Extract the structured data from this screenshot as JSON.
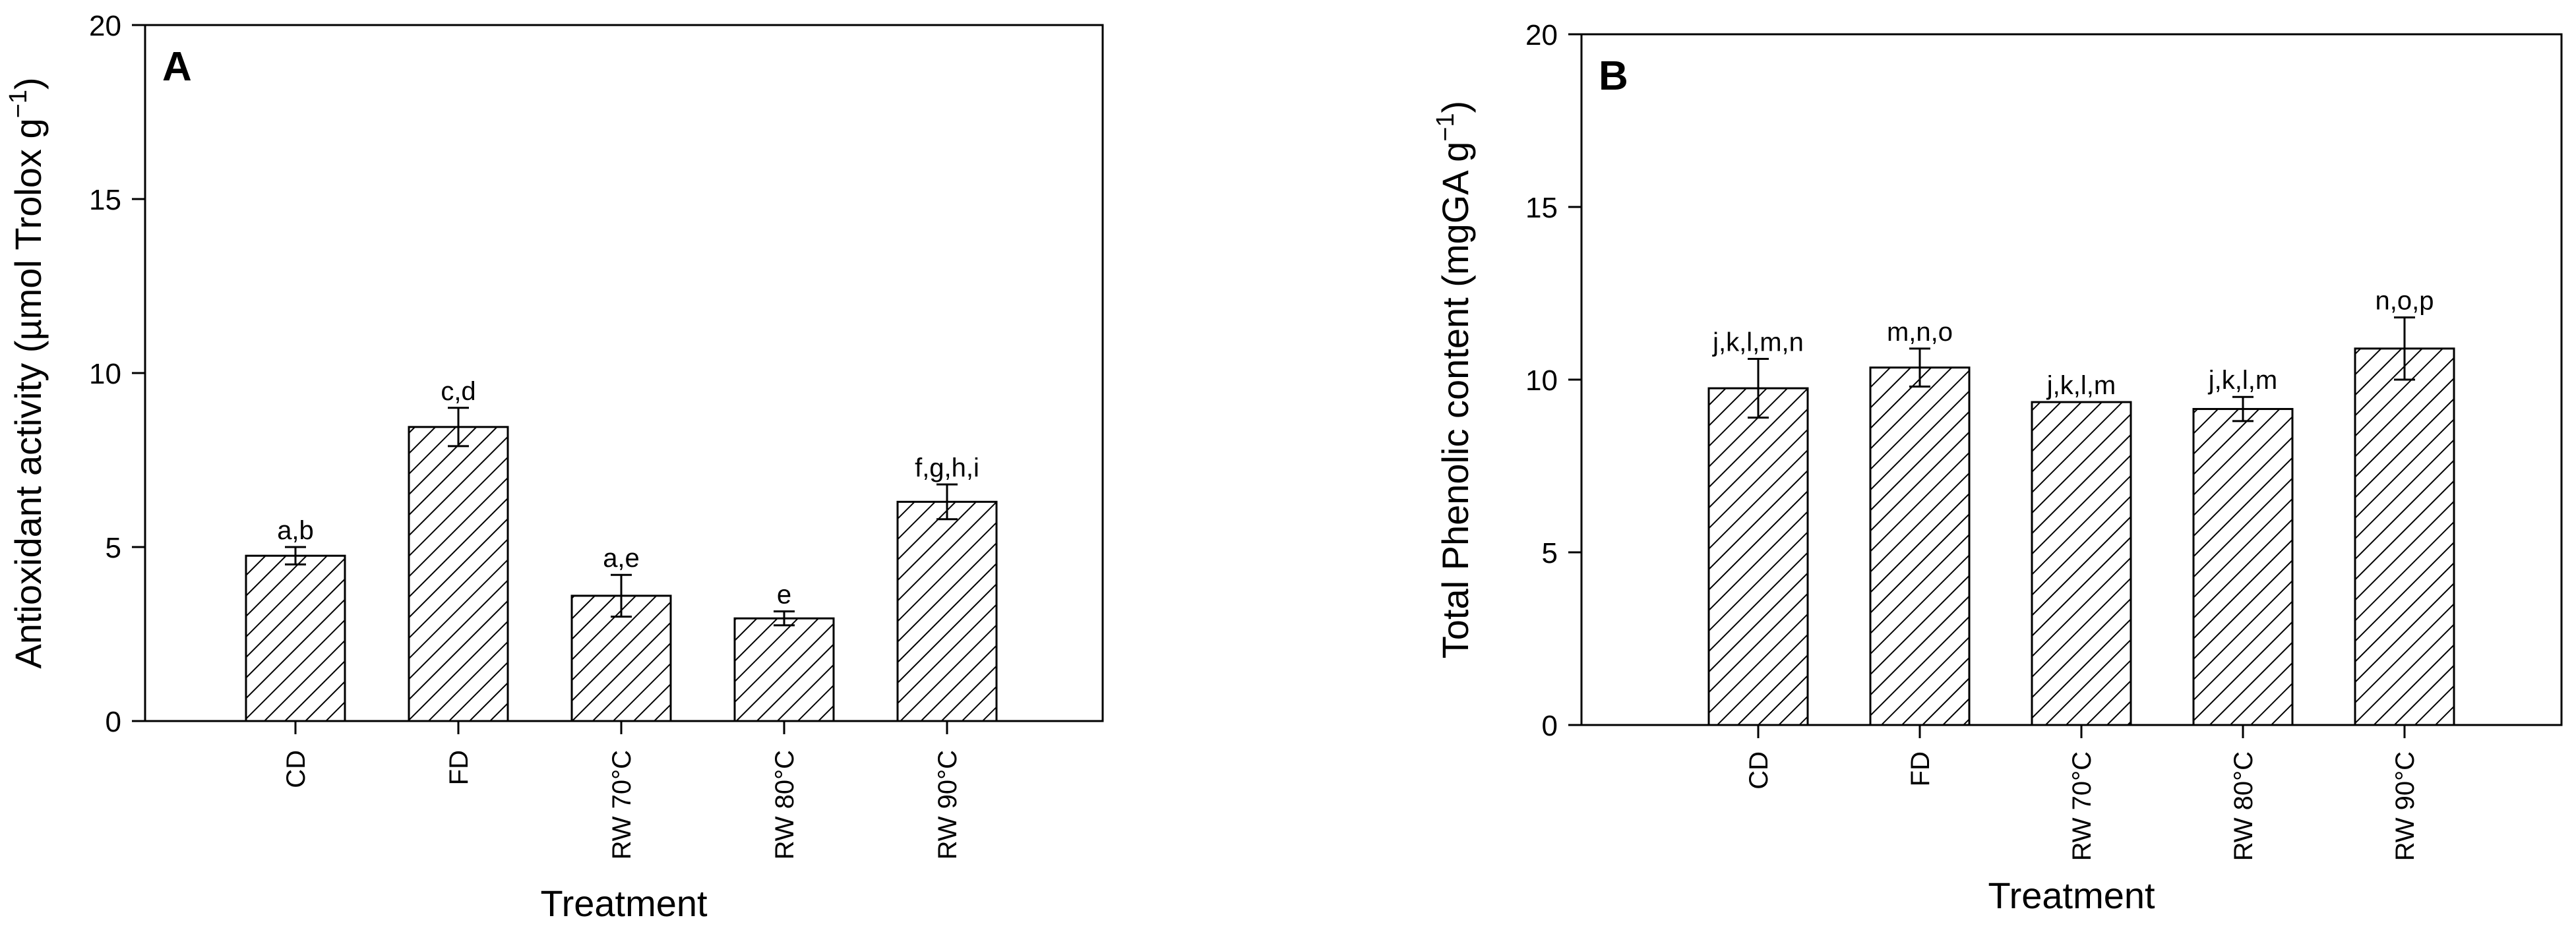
{
  "figure": {
    "bar_fill": "#ffffff",
    "bar_stroke": "#000000",
    "hatch_color": "#000000",
    "hatch_pattern": "diagonal"
  },
  "chart_data": [
    {
      "type": "bar",
      "panel_label": "A",
      "categories": [
        "CD",
        "FD",
        "RW 70°C",
        "RW 80°C",
        "RW 90°C"
      ],
      "values": [
        4.75,
        8.45,
        3.6,
        2.95,
        6.3
      ],
      "errors": [
        0.25,
        0.55,
        0.6,
        0.2,
        0.5
      ],
      "annotations": [
        "a,b",
        "c,d",
        "a,e",
        "e",
        "f,g,h,i"
      ],
      "xlabel": "Treatment",
      "ylabel_main": "Antioxidant activity (µmol Trolox g",
      "ylabel_sup": "−1",
      "ylabel_end": ")",
      "ylim": [
        0,
        20
      ],
      "yticks": [
        0,
        5,
        10,
        15,
        20
      ],
      "grid": false,
      "legend": "none"
    },
    {
      "type": "bar",
      "panel_label": "B",
      "categories": [
        "CD",
        "FD",
        "RW 70°C",
        "RW 80°C",
        "RW 90°C"
      ],
      "values": [
        9.75,
        10.35,
        9.35,
        9.15,
        10.9
      ],
      "errors": [
        0.85,
        0.55,
        0.0,
        0.35,
        0.9
      ],
      "annotations": [
        "j,k,l,m,n",
        "m,n,o",
        "j,k,l,m",
        "j,k,l,m",
        "n,o,p"
      ],
      "xlabel": "Treatment",
      "ylabel_main": "Total Phenolic content (mgGA g",
      "ylabel_sup": "−1",
      "ylabel_end": ")",
      "ylim": [
        0,
        20
      ],
      "yticks": [
        0,
        5,
        10,
        15,
        20
      ],
      "grid": false,
      "legend": "none"
    }
  ]
}
